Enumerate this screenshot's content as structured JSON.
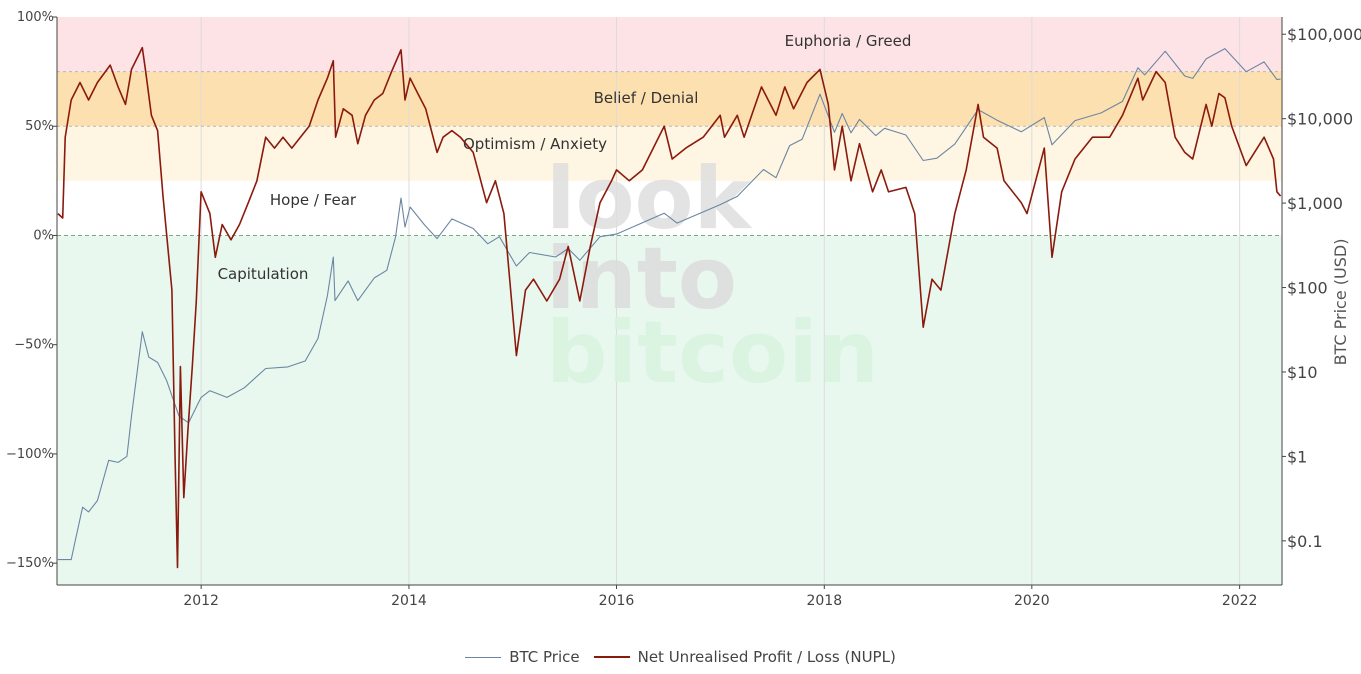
{
  "chart_data": {
    "type": "line",
    "title": "",
    "xlabel": "",
    "ylabel_left": "",
    "ylabel_right": "BTC Price (USD)",
    "x_tick_labels": [
      "2012",
      "2014",
      "2016",
      "2018",
      "2020",
      "2022"
    ],
    "xlim": [
      "2010-08-12",
      "2022-05-30"
    ],
    "y_left": {
      "ylim": [
        -160,
        100
      ],
      "ticks": [
        100,
        50,
        0,
        -50,
        -100,
        -150
      ],
      "tick_labels": [
        "100%",
        "50%",
        "0%",
        "−50%",
        "−100%",
        "−150%"
      ]
    },
    "y_right": {
      "scale": "log",
      "ylim": [
        0.03,
        160000
      ],
      "ticks": [
        100000,
        10000,
        1000,
        100,
        10,
        1,
        0.1
      ],
      "tick_labels": [
        "$100,000",
        "$10,000",
        "$1,000",
        "$100",
        "$10",
        "$1",
        "$0.1"
      ]
    },
    "zones": [
      {
        "label": "Euphoria / Greed",
        "from": 75,
        "to": 100,
        "color": "#fde3e6"
      },
      {
        "label": "Belief / Denial",
        "from": 50,
        "to": 75,
        "color": "#fde0b0"
      },
      {
        "label": "Optimism / Anxiety",
        "from": 25,
        "to": 50,
        "color": "#fef5e2"
      },
      {
        "label": "Hope / Fear",
        "from": 0,
        "to": 25,
        "color": "#ffffff"
      },
      {
        "label": "Capitulation",
        "from": -160,
        "to": 0,
        "color": "#e9f8ef"
      }
    ],
    "grid": true,
    "legend_position": "bottom-center",
    "watermark": [
      "look",
      "into",
      "bitcoin"
    ],
    "series": [
      {
        "name": "BTC Price",
        "axis": "right",
        "color": "#6b86a3",
        "points": [
          [
            "2010-08-15",
            0.06
          ],
          [
            "2010-10-01",
            0.06
          ],
          [
            "2010-10-15",
            0.1
          ],
          [
            "2010-11-10",
            0.25
          ],
          [
            "2010-12-01",
            0.22
          ],
          [
            "2011-01-01",
            0.3
          ],
          [
            "2011-02-10",
            0.9
          ],
          [
            "2011-03-15",
            0.85
          ],
          [
            "2011-04-15",
            1.0
          ],
          [
            "2011-05-01",
            3.0
          ],
          [
            "2011-06-08",
            30.0
          ],
          [
            "2011-07-01",
            15.0
          ],
          [
            "2011-08-01",
            13.0
          ],
          [
            "2011-09-01",
            8.0
          ],
          [
            "2011-10-15",
            3.0
          ],
          [
            "2011-11-18",
            2.5
          ],
          [
            "2012-01-01",
            5.0
          ],
          [
            "2012-02-01",
            6.0
          ],
          [
            "2012-04-01",
            5.0
          ],
          [
            "2012-06-01",
            6.5
          ],
          [
            "2012-08-15",
            11.0
          ],
          [
            "2012-11-01",
            11.5
          ],
          [
            "2013-01-01",
            13.5
          ],
          [
            "2013-02-15",
            25.0
          ],
          [
            "2013-03-20",
            80.0
          ],
          [
            "2013-04-10",
            230.0
          ],
          [
            "2013-04-16",
            70.0
          ],
          [
            "2013-06-01",
            120.0
          ],
          [
            "2013-07-05",
            70.0
          ],
          [
            "2013-09-01",
            130.0
          ],
          [
            "2013-10-15",
            160.0
          ],
          [
            "2013-11-15",
            400.0
          ],
          [
            "2013-12-04",
            1150.0
          ],
          [
            "2013-12-18",
            520.0
          ],
          [
            "2014-01-05",
            900.0
          ],
          [
            "2014-02-25",
            550.0
          ],
          [
            "2014-04-10",
            380.0
          ],
          [
            "2014-06-01",
            650.0
          ],
          [
            "2014-08-15",
            500.0
          ],
          [
            "2014-10-05",
            330.0
          ],
          [
            "2014-11-15",
            400.0
          ],
          [
            "2015-01-14",
            180.0
          ],
          [
            "2015-03-01",
            260.0
          ],
          [
            "2015-06-01",
            230.0
          ],
          [
            "2015-07-15",
            290.0
          ],
          [
            "2015-08-25",
            210.0
          ],
          [
            "2015-11-04",
            400.0
          ],
          [
            "2016-01-01",
            430.0
          ],
          [
            "2016-06-17",
            760.0
          ],
          [
            "2016-08-01",
            580.0
          ],
          [
            "2016-12-31",
            960.0
          ],
          [
            "2017-03-01",
            1200.0
          ],
          [
            "2017-06-01",
            2500.0
          ],
          [
            "2017-07-15",
            2000.0
          ],
          [
            "2017-09-01",
            4800.0
          ],
          [
            "2017-10-15",
            5700.0
          ],
          [
            "2017-12-17",
            19500.0
          ],
          [
            "2018-02-06",
            6900.0
          ],
          [
            "2018-03-05",
            11500.0
          ],
          [
            "2018-04-05",
            6800.0
          ],
          [
            "2018-05-05",
            9800.0
          ],
          [
            "2018-07-01",
            6300.0
          ],
          [
            "2018-08-01",
            7700.0
          ],
          [
            "2018-10-15",
            6400.0
          ],
          [
            "2018-12-15",
            3200.0
          ],
          [
            "2019-02-01",
            3400.0
          ],
          [
            "2019-04-05",
            5000.0
          ],
          [
            "2019-06-26",
            12800.0
          ],
          [
            "2019-09-01",
            9600.0
          ],
          [
            "2019-11-25",
            7000.0
          ],
          [
            "2020-02-14",
            10300.0
          ],
          [
            "2020-03-12",
            4900.0
          ],
          [
            "2020-06-01",
            9500.0
          ],
          [
            "2020-09-01",
            11700.0
          ],
          [
            "2020-11-15",
            16000.0
          ],
          [
            "2021-01-08",
            40000.0
          ],
          [
            "2021-02-01",
            33000.0
          ],
          [
            "2021-04-14",
            63000.0
          ],
          [
            "2021-06-22",
            32000.0
          ],
          [
            "2021-07-20",
            30000.0
          ],
          [
            "2021-09-05",
            51000.0
          ],
          [
            "2021-11-10",
            67500.0
          ],
          [
            "2022-01-24",
            36000.0
          ],
          [
            "2022-03-28",
            47000.0
          ],
          [
            "2022-05-12",
            29000.0
          ],
          [
            "2022-05-25",
            29500.0
          ]
        ]
      },
      {
        "name": "Net Unrealised Profit / Loss (NUPL)",
        "axis": "left",
        "color": "#8b1a0e",
        "points": [
          [
            "2010-08-15",
            10
          ],
          [
            "2010-09-01",
            8
          ],
          [
            "2010-09-10",
            45
          ],
          [
            "2010-10-01",
            62
          ],
          [
            "2010-11-01",
            70
          ],
          [
            "2010-12-01",
            62
          ],
          [
            "2011-01-01",
            70
          ],
          [
            "2011-02-15",
            78
          ],
          [
            "2011-03-15",
            68
          ],
          [
            "2011-04-10",
            60
          ],
          [
            "2011-05-01",
            76
          ],
          [
            "2011-06-08",
            86
          ],
          [
            "2011-06-20",
            75
          ],
          [
            "2011-07-10",
            55
          ],
          [
            "2011-08-01",
            48
          ],
          [
            "2011-08-20",
            18
          ],
          [
            "2011-09-20",
            -25
          ],
          [
            "2011-10-01",
            -100
          ],
          [
            "2011-10-10",
            -152
          ],
          [
            "2011-10-20",
            -60
          ],
          [
            "2011-11-01",
            -120
          ],
          [
            "2011-11-15",
            -90
          ],
          [
            "2011-12-01",
            -60
          ],
          [
            "2011-12-15",
            -30
          ],
          [
            "2012-01-01",
            20
          ],
          [
            "2012-02-01",
            10
          ],
          [
            "2012-02-20",
            -10
          ],
          [
            "2012-03-15",
            5
          ],
          [
            "2012-04-15",
            -2
          ],
          [
            "2012-05-15",
            5
          ],
          [
            "2012-06-15",
            15
          ],
          [
            "2012-07-15",
            25
          ],
          [
            "2012-08-15",
            45
          ],
          [
            "2012-09-15",
            40
          ],
          [
            "2012-10-15",
            45
          ],
          [
            "2012-11-15",
            40
          ],
          [
            "2012-12-15",
            45
          ],
          [
            "2013-01-15",
            50
          ],
          [
            "2013-02-15",
            62
          ],
          [
            "2013-03-20",
            72
          ],
          [
            "2013-04-10",
            80
          ],
          [
            "2013-04-18",
            45
          ],
          [
            "2013-05-15",
            58
          ],
          [
            "2013-06-15",
            55
          ],
          [
            "2013-07-05",
            42
          ],
          [
            "2013-08-01",
            55
          ],
          [
            "2013-09-01",
            62
          ],
          [
            "2013-10-01",
            65
          ],
          [
            "2013-11-01",
            75
          ],
          [
            "2013-12-04",
            85
          ],
          [
            "2013-12-18",
            62
          ],
          [
            "2014-01-05",
            72
          ],
          [
            "2014-02-01",
            65
          ],
          [
            "2014-03-01",
            58
          ],
          [
            "2014-04-10",
            38
          ],
          [
            "2014-05-01",
            45
          ],
          [
            "2014-06-01",
            48
          ],
          [
            "2014-07-01",
            45
          ],
          [
            "2014-08-15",
            38
          ],
          [
            "2014-10-01",
            15
          ],
          [
            "2014-11-01",
            25
          ],
          [
            "2014-12-01",
            10
          ],
          [
            "2015-01-14",
            -55
          ],
          [
            "2015-02-15",
            -25
          ],
          [
            "2015-03-15",
            -20
          ],
          [
            "2015-05-01",
            -30
          ],
          [
            "2015-06-15",
            -20
          ],
          [
            "2015-07-15",
            -5
          ],
          [
            "2015-08-25",
            -30
          ],
          [
            "2015-10-01",
            -5
          ],
          [
            "2015-11-04",
            15
          ],
          [
            "2015-12-15",
            25
          ],
          [
            "2016-01-01",
            30
          ],
          [
            "2016-02-15",
            25
          ],
          [
            "2016-04-01",
            30
          ],
          [
            "2016-06-17",
            50
          ],
          [
            "2016-07-15",
            35
          ],
          [
            "2016-09-01",
            40
          ],
          [
            "2016-11-01",
            45
          ],
          [
            "2016-12-31",
            55
          ],
          [
            "2017-01-15",
            45
          ],
          [
            "2017-03-01",
            55
          ],
          [
            "2017-03-25",
            45
          ],
          [
            "2017-05-25",
            68
          ],
          [
            "2017-07-15",
            55
          ],
          [
            "2017-08-15",
            68
          ],
          [
            "2017-09-15",
            58
          ],
          [
            "2017-11-01",
            70
          ],
          [
            "2017-12-17",
            76
          ],
          [
            "2018-01-15",
            60
          ],
          [
            "2018-02-06",
            30
          ],
          [
            "2018-03-05",
            50
          ],
          [
            "2018-04-05",
            25
          ],
          [
            "2018-05-05",
            42
          ],
          [
            "2018-06-20",
            20
          ],
          [
            "2018-07-20",
            30
          ],
          [
            "2018-08-15",
            20
          ],
          [
            "2018-10-15",
            22
          ],
          [
            "2018-11-15",
            10
          ],
          [
            "2018-12-15",
            -42
          ],
          [
            "2019-01-15",
            -20
          ],
          [
            "2019-02-15",
            -25
          ],
          [
            "2019-04-05",
            10
          ],
          [
            "2019-05-15",
            30
          ],
          [
            "2019-06-26",
            60
          ],
          [
            "2019-07-15",
            45
          ],
          [
            "2019-09-01",
            40
          ],
          [
            "2019-09-25",
            25
          ],
          [
            "2019-11-25",
            15
          ],
          [
            "2019-12-15",
            10
          ],
          [
            "2020-02-14",
            40
          ],
          [
            "2020-03-12",
            -10
          ],
          [
            "2020-04-15",
            20
          ],
          [
            "2020-06-01",
            35
          ],
          [
            "2020-08-01",
            45
          ],
          [
            "2020-10-01",
            45
          ],
          [
            "2020-11-15",
            55
          ],
          [
            "2021-01-08",
            72
          ],
          [
            "2021-01-25",
            62
          ],
          [
            "2021-03-13",
            75
          ],
          [
            "2021-04-14",
            70
          ],
          [
            "2021-05-19",
            45
          ],
          [
            "2021-06-22",
            38
          ],
          [
            "2021-07-20",
            35
          ],
          [
            "2021-09-05",
            60
          ],
          [
            "2021-09-25",
            50
          ],
          [
            "2021-10-20",
            65
          ],
          [
            "2021-11-10",
            63
          ],
          [
            "2021-12-04",
            50
          ],
          [
            "2022-01-24",
            32
          ],
          [
            "2022-03-28",
            45
          ],
          [
            "2022-04-30",
            35
          ],
          [
            "2022-05-12",
            20
          ],
          [
            "2022-05-25",
            18
          ]
        ]
      }
    ]
  }
}
